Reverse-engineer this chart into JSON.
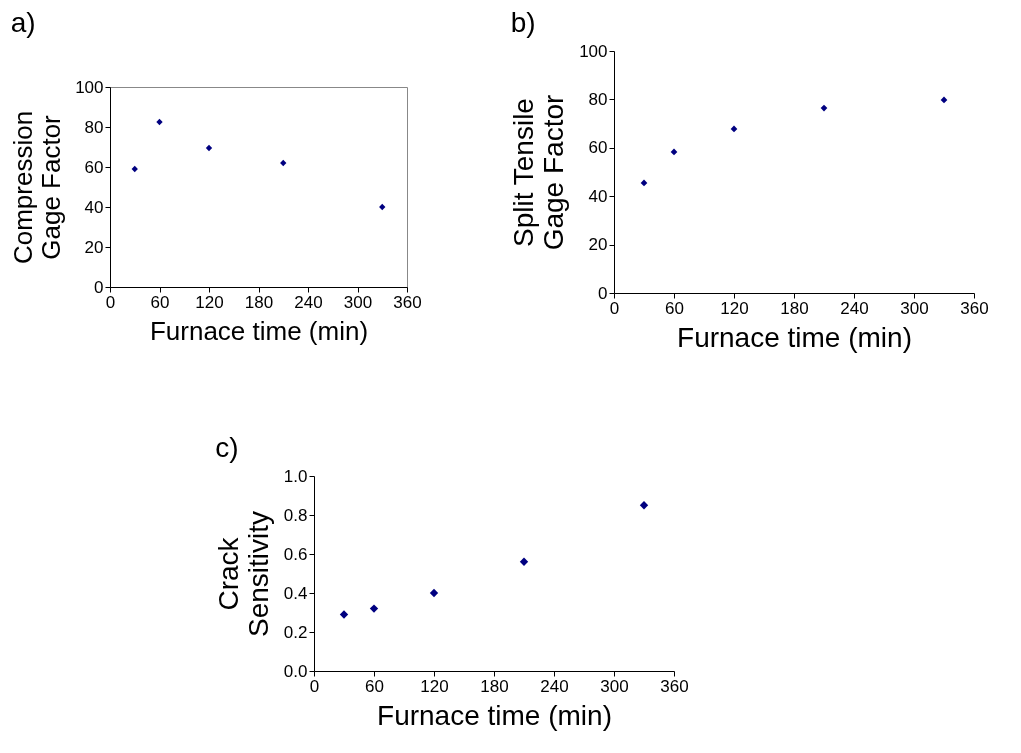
{
  "chart_data": [
    {
      "type": "scatter",
      "title": "a)",
      "xlabel": "Furnace time (min)",
      "ylabel": "Compression\nGage Factor",
      "x": [
        30,
        60,
        120,
        210,
        330
      ],
      "series": [
        {
          "color": "#000080",
          "values": [
            59,
            82.5,
            69.5,
            62,
            40
          ]
        }
      ],
      "xlim": [
        0,
        360
      ],
      "xticks": [
        0,
        60,
        120,
        180,
        240,
        300,
        360
      ],
      "ylim": [
        0,
        100
      ],
      "yticks": [
        0,
        20,
        40,
        60,
        80,
        100
      ],
      "marker": "diamond",
      "grid": false
    },
    {
      "type": "scatter",
      "title": "b)",
      "xlabel": "Furnace time (min)",
      "ylabel": "Split Tensile\nGage Factor",
      "x": [
        30,
        60,
        120,
        210,
        330
      ],
      "series": [
        {
          "color": "#000080",
          "values": [
            45.5,
            58.3,
            67.8,
            76.4,
            79.8
          ]
        }
      ],
      "xlim": [
        0,
        360
      ],
      "xticks": [
        0,
        60,
        120,
        180,
        240,
        300,
        360
      ],
      "ylim": [
        0,
        100
      ],
      "yticks": [
        0,
        20,
        40,
        60,
        80,
        100
      ],
      "marker": "diamond",
      "grid": false
    },
    {
      "type": "scatter",
      "title": "c)",
      "xlabel": "Furnace time (min)",
      "ylabel": "Crack\nSensitivity",
      "x": [
        30,
        60,
        120,
        210,
        330
      ],
      "series": [
        {
          "color": "#000080",
          "values": [
            0.29,
            0.32,
            0.4,
            0.56,
            0.85
          ]
        }
      ],
      "xlim": [
        0,
        360
      ],
      "xticks": [
        0,
        60,
        120,
        180,
        240,
        300,
        360
      ],
      "ylim": [
        0,
        1
      ],
      "yticks": [
        {
          "value": 0,
          "label": "0.0"
        },
        {
          "value": 0.2,
          "label": "0.2"
        },
        {
          "value": 0.4,
          "label": "0.4"
        },
        {
          "value": 0.6,
          "label": "0.6"
        },
        {
          "value": 0.8,
          "label": "0.8"
        },
        {
          "value": 1,
          "label": "1.0"
        }
      ],
      "marker": "diamond",
      "grid": false
    }
  ]
}
